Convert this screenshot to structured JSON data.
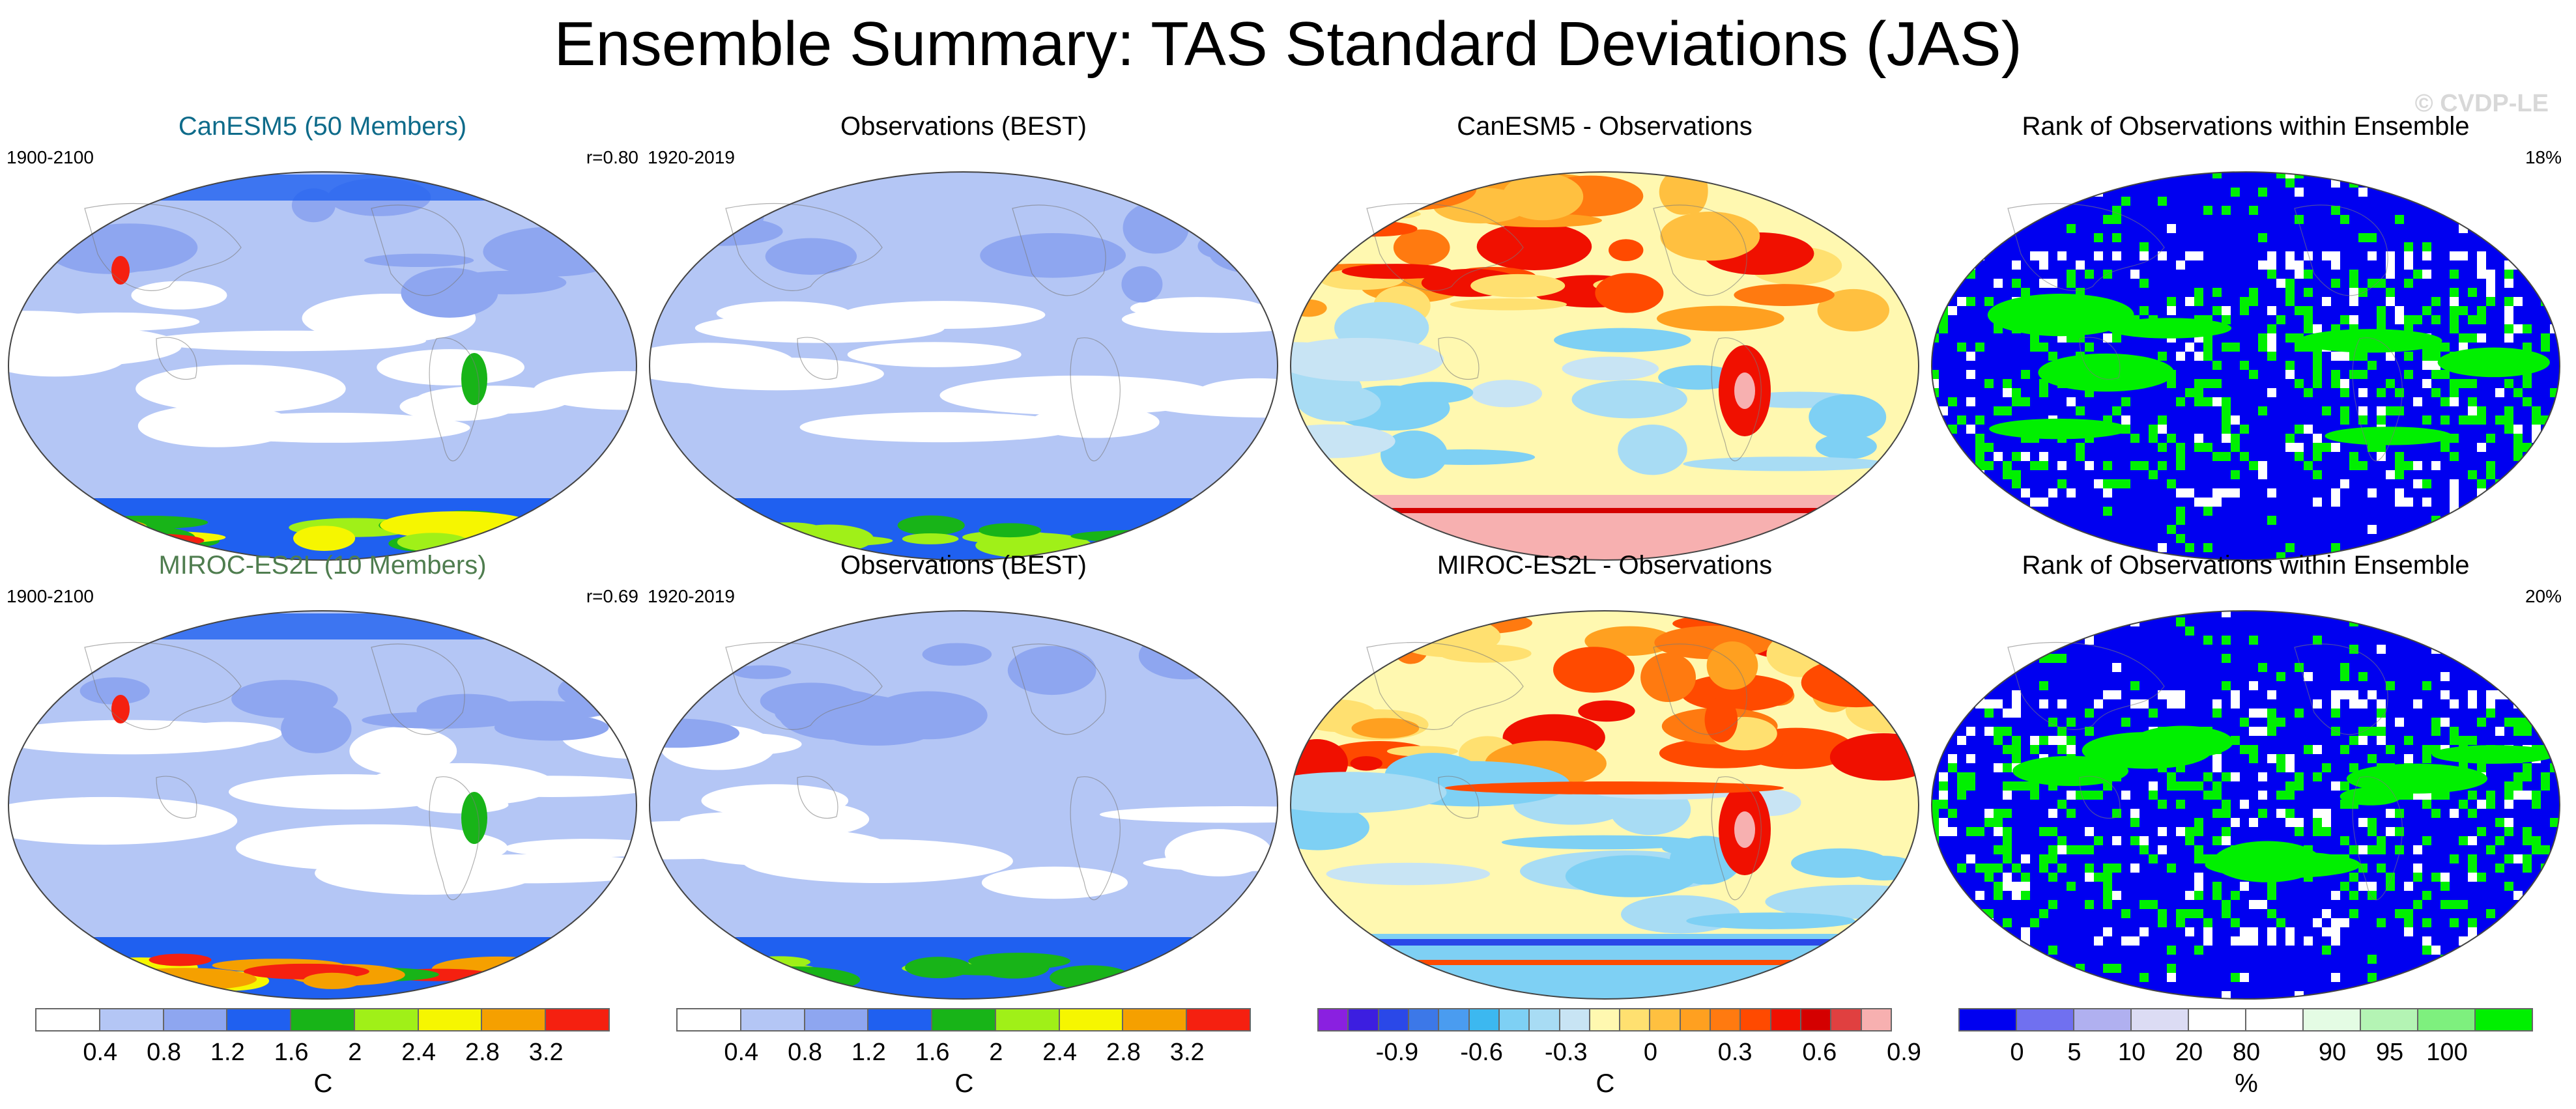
{
  "figure": {
    "title": "Ensemble Summary: TAS Standard Deviations (JAS)",
    "watermark": "© CVDP-LE"
  },
  "chart_data": [
    {
      "type": "heatmap",
      "id": "canesm5-std",
      "title": "CanESM5 (50 Members)",
      "title_color": "#0e6b8a",
      "left_note": "1900-2100",
      "right_note": "r=0.80",
      "units": "C",
      "scale": "std"
    },
    {
      "type": "heatmap",
      "id": "obs-std-1",
      "title": "Observations (BEST)",
      "title_color": "#000000",
      "left_note": "1920-2019",
      "right_note": "",
      "units": "C",
      "scale": "std"
    },
    {
      "type": "heatmap",
      "id": "canesm5-diff",
      "title": "CanESM5 - Observations",
      "title_color": "#000000",
      "left_note": "",
      "right_note": "",
      "units": "C",
      "scale": "diff"
    },
    {
      "type": "heatmap",
      "id": "canesm5-rank",
      "title": "Rank of Observations within Ensemble",
      "title_color": "#000000",
      "left_note": "",
      "right_note": "18%",
      "units": "%",
      "scale": "rank"
    },
    {
      "type": "heatmap",
      "id": "miroc-std",
      "title": "MIROC-ES2L (10 Members)",
      "title_color": "#4f7d4f",
      "left_note": "1900-2100",
      "right_note": "r=0.69",
      "units": "C",
      "scale": "std"
    },
    {
      "type": "heatmap",
      "id": "obs-std-2",
      "title": "Observations (BEST)",
      "title_color": "#000000",
      "left_note": "1920-2019",
      "right_note": "",
      "units": "C",
      "scale": "std"
    },
    {
      "type": "heatmap",
      "id": "miroc-diff",
      "title": "MIROC-ES2L - Observations",
      "title_color": "#000000",
      "left_note": "",
      "right_note": "",
      "units": "C",
      "scale": "diff"
    },
    {
      "type": "heatmap",
      "id": "miroc-rank",
      "title": "Rank of Observations within Ensemble",
      "title_color": "#000000",
      "left_note": "",
      "right_note": "20%",
      "units": "%",
      "scale": "rank"
    }
  ],
  "colorbars": [
    {
      "id": "std-1",
      "colors": [
        "#ffffff",
        "#b4c6f5",
        "#8ea6f0",
        "#1f60f0",
        "#18b418",
        "#a0f018",
        "#f6f600",
        "#f5a000",
        "#f52010"
      ],
      "labels": [
        "0.4",
        "0.8",
        "1.2",
        "1.6",
        "2",
        "2.4",
        "2.8",
        "3.2"
      ],
      "unit": "C"
    },
    {
      "id": "std-2",
      "colors": [
        "#ffffff",
        "#b4c6f5",
        "#8ea6f0",
        "#1f60f0",
        "#18b418",
        "#a0f018",
        "#f6f600",
        "#f5a000",
        "#f52010"
      ],
      "labels": [
        "0.4",
        "0.8",
        "1.2",
        "1.6",
        "2",
        "2.4",
        "2.8",
        "3.2"
      ],
      "unit": "C"
    },
    {
      "id": "diff",
      "colors": [
        "#8a20e0",
        "#3c1ee0",
        "#2a48e8",
        "#3c78e8",
        "#4a9cf0",
        "#3cb8f0",
        "#7ed0f4",
        "#a8dcf4",
        "#c8e4f4",
        "#fff8b0",
        "#ffe070",
        "#ffc040",
        "#ffa020",
        "#ff7a10",
        "#ff4a00",
        "#f01000",
        "#d40000",
        "#e04040",
        "#f7b0b0"
      ],
      "labels": [
        "-0.9",
        "-0.6",
        "-0.3",
        "0",
        "0.3",
        "0.6",
        "0.9"
      ],
      "unit": "C"
    },
    {
      "id": "rank",
      "colors": [
        "#0000f0",
        "#7070f0",
        "#b0b0f0",
        "#dcdcf4",
        "#ffffff",
        "#ffffff",
        "#e4fce4",
        "#b4f4b4",
        "#7ef07e",
        "#00f000"
      ],
      "labels": [
        "0",
        "5",
        "10",
        "20",
        "80",
        "90",
        "95",
        "100"
      ],
      "unit": "%"
    }
  ]
}
